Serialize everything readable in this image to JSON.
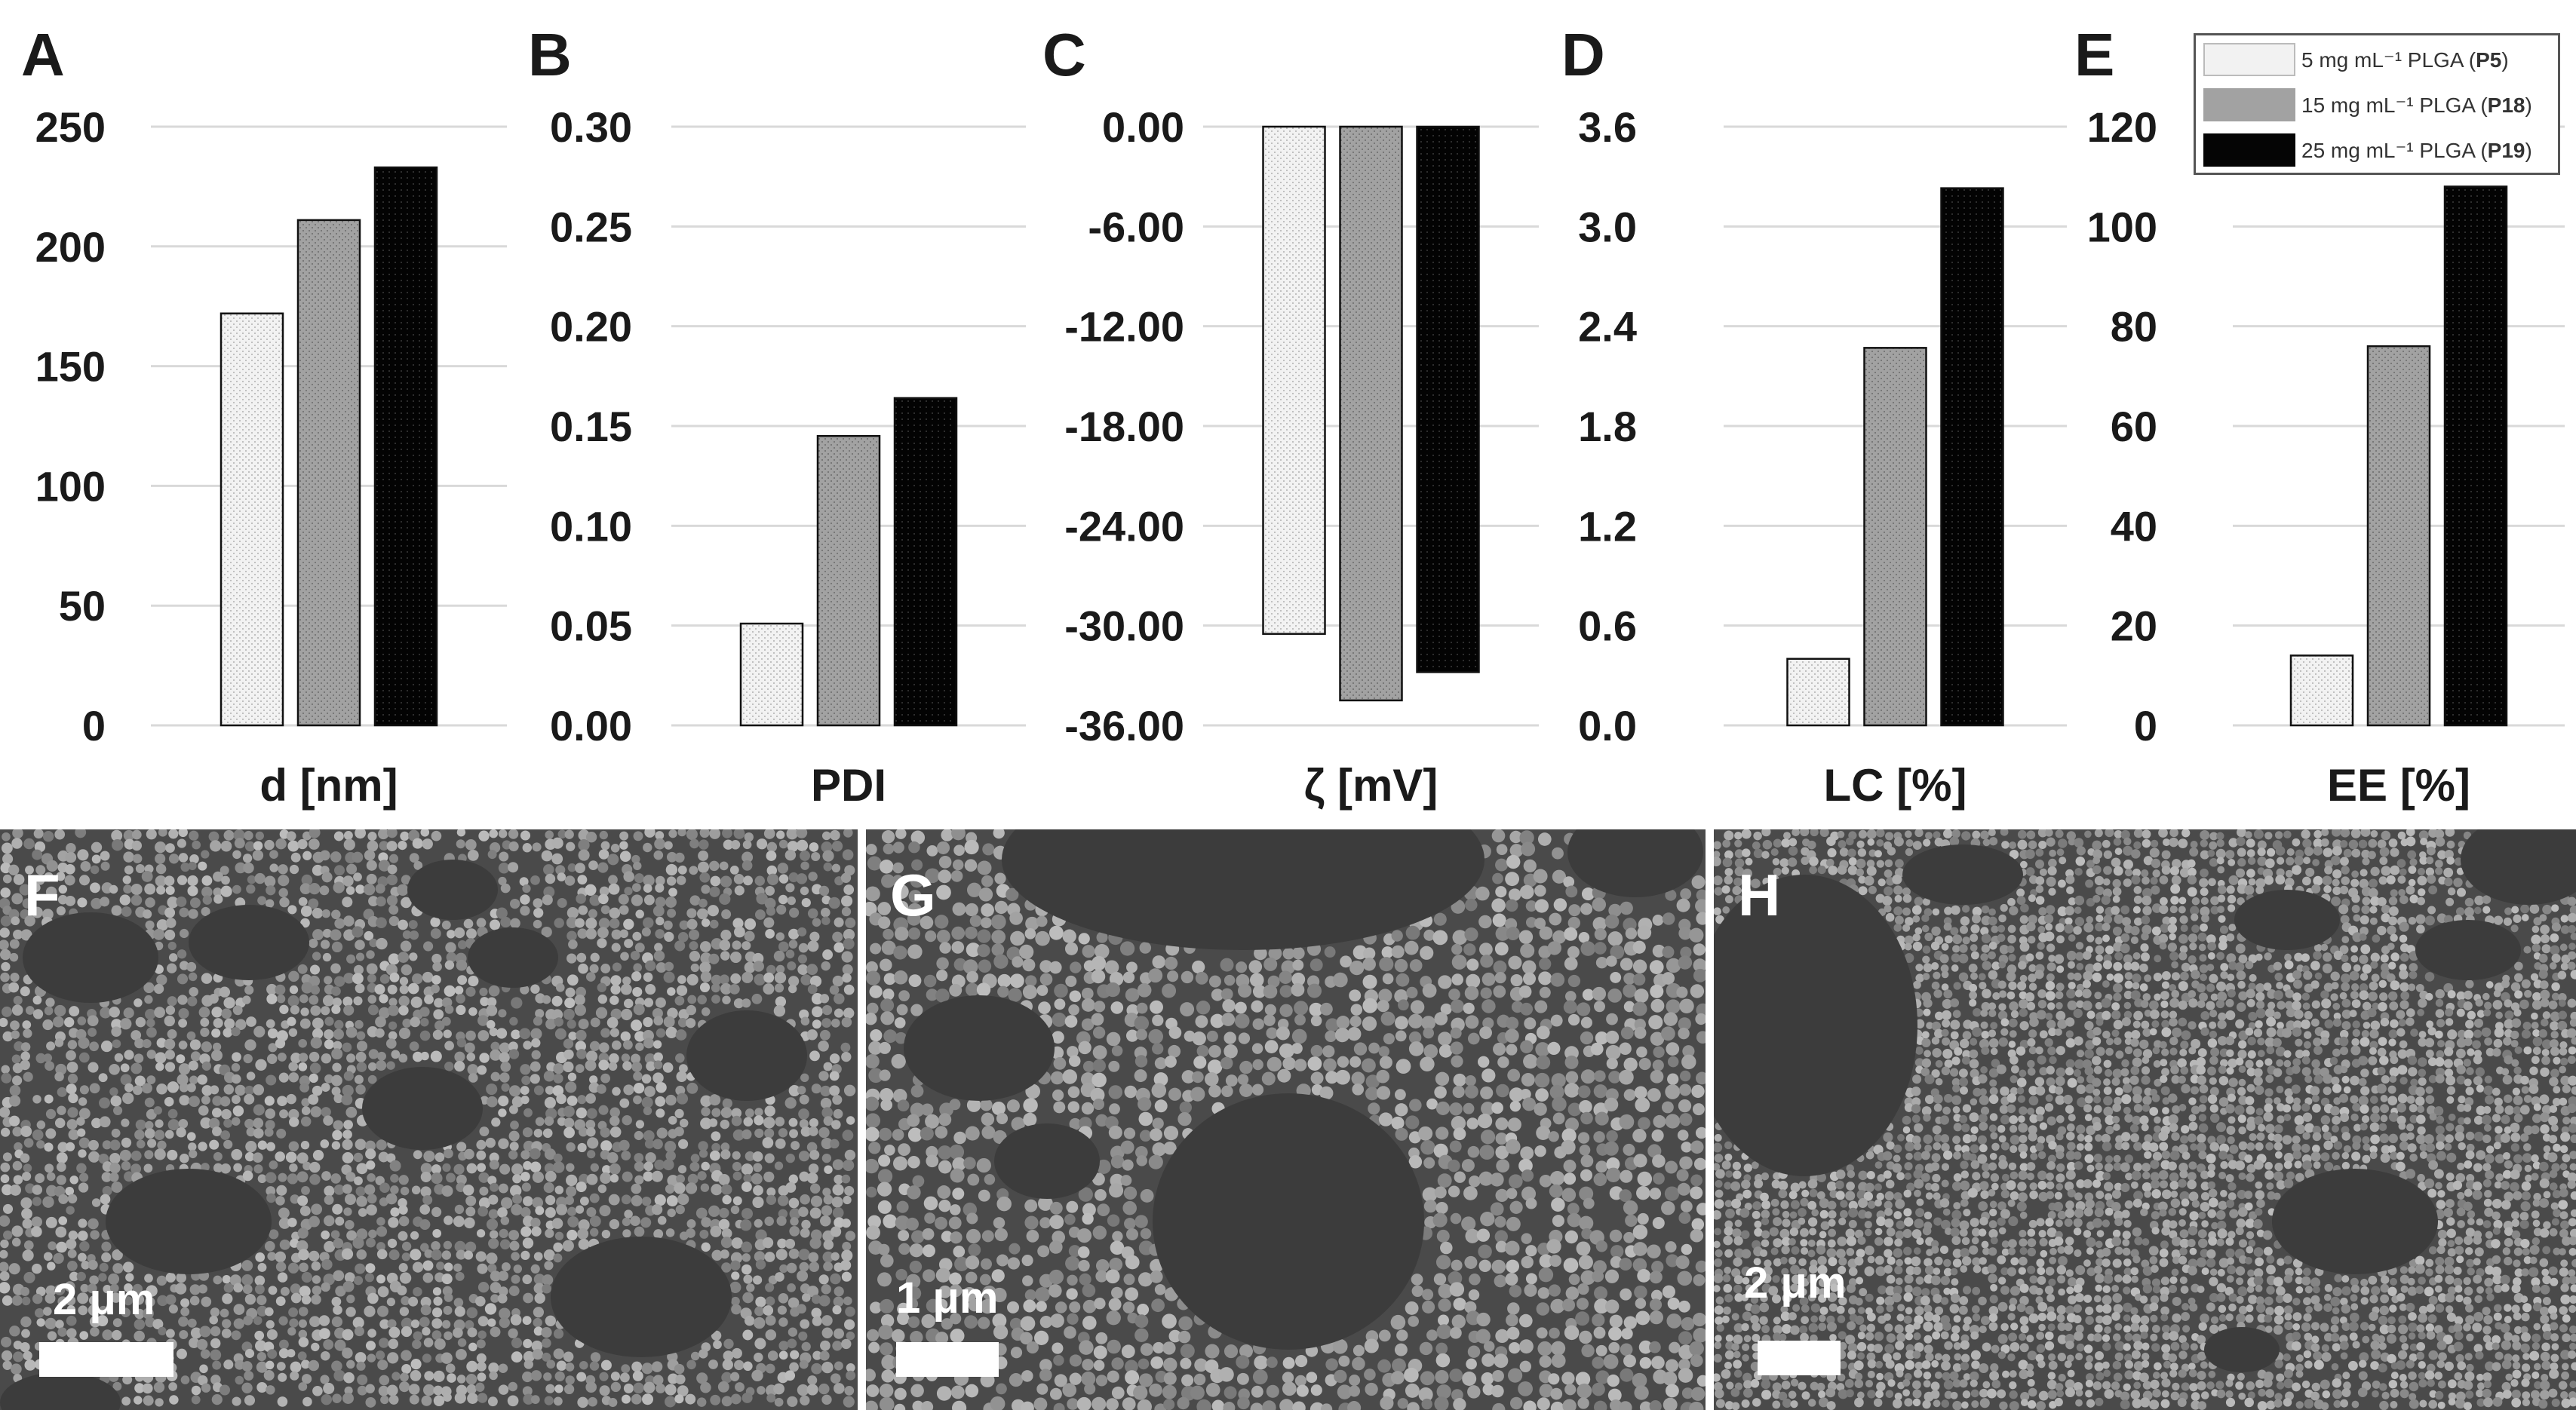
{
  "colors": {
    "p5": "#efefef",
    "p18": "#9a9a9a",
    "p19": "#050505",
    "grid": "#d9d9d9",
    "text": "#1a1a1a"
  },
  "legend": {
    "items": [
      {
        "text": "5 mg mL⁻¹ PLGA (",
        "code": "P5",
        "close": ")"
      },
      {
        "text": "15 mg mL⁻¹ PLGA (",
        "code": "P18",
        "close": ")"
      },
      {
        "text": "25 mg mL⁻¹ PLGA (",
        "code": "P19",
        "close": ")"
      }
    ]
  },
  "chart_data": [
    {
      "panel": "A",
      "type": "bar",
      "xlabel": "d [nm]",
      "ylim": [
        0,
        250
      ],
      "yticks": [
        "0",
        "50",
        "100",
        "150",
        "200",
        "250"
      ],
      "series": [
        {
          "name": "P5",
          "values": [
            172
          ]
        },
        {
          "name": "P18",
          "values": [
            211
          ]
        },
        {
          "name": "P19",
          "values": [
            233
          ]
        }
      ],
      "grid": true
    },
    {
      "panel": "B",
      "type": "bar",
      "xlabel": "PDI",
      "ylim": [
        0,
        0.3
      ],
      "yticks": [
        "0.00",
        "0.05",
        "0.10",
        "0.15",
        "0.20",
        "0.25",
        "0.30"
      ],
      "series": [
        {
          "name": "P5",
          "values": [
            0.051
          ]
        },
        {
          "name": "P18",
          "values": [
            0.145
          ]
        },
        {
          "name": "P19",
          "values": [
            0.164
          ]
        }
      ],
      "grid": true
    },
    {
      "panel": "C",
      "type": "bar",
      "xlabel": "ζ [mV]",
      "ylim": [
        -36,
        0
      ],
      "yticks": [
        "-36.00",
        "-30.00",
        "-24.00",
        "-18.00",
        "-12.00",
        "-6.00",
        "0.00"
      ],
      "series": [
        {
          "name": "P5",
          "values": [
            -30.5
          ]
        },
        {
          "name": "P18",
          "values": [
            -34.5
          ]
        },
        {
          "name": "P19",
          "values": [
            -32.8
          ]
        }
      ],
      "grid": true
    },
    {
      "panel": "D",
      "type": "bar",
      "xlabel": "LC [%]",
      "ylim": [
        0,
        3.6
      ],
      "yticks": [
        "0.0",
        "0.6",
        "1.2",
        "1.8",
        "2.4",
        "3.0",
        "3.6"
      ],
      "series": [
        {
          "name": "P5",
          "values": [
            0.4
          ]
        },
        {
          "name": "P18",
          "values": [
            2.27
          ]
        },
        {
          "name": "P19",
          "values": [
            3.23
          ]
        }
      ],
      "grid": true
    },
    {
      "panel": "E",
      "type": "bar",
      "xlabel": "EE [%]",
      "ylim": [
        0,
        120
      ],
      "yticks": [
        "0",
        "20",
        "40",
        "60",
        "80",
        "100",
        "120"
      ],
      "series": [
        {
          "name": "P5",
          "values": [
            14
          ]
        },
        {
          "name": "P18",
          "values": [
            76
          ]
        },
        {
          "name": "P19",
          "values": [
            108
          ]
        }
      ],
      "grid": true
    }
  ],
  "images": [
    {
      "panel": "F",
      "scale": "2 μm"
    },
    {
      "panel": "G",
      "scale": "1 μm"
    },
    {
      "panel": "H",
      "scale": "2 μm"
    }
  ]
}
